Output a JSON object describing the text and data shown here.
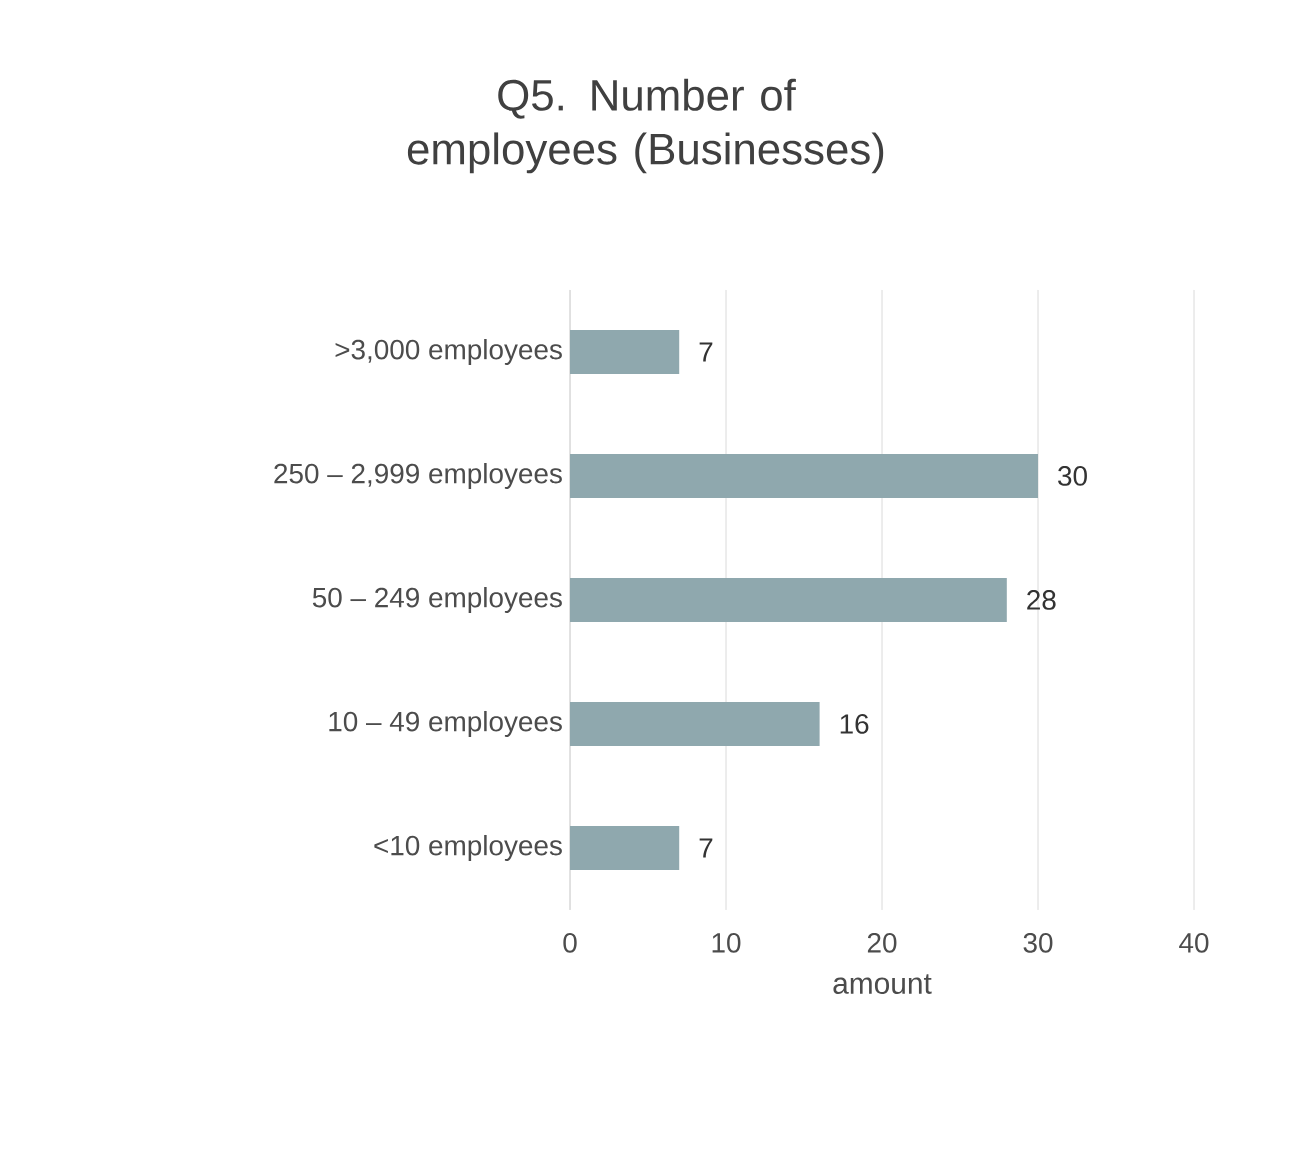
{
  "chart_data": {
    "type": "bar",
    "orientation": "horizontal",
    "title": "Q5. Number of employees (Businesses)",
    "xlabel": "amount",
    "categories": [
      ">3,000 employees",
      "250 – 2,999 employees",
      "50 – 249 employees",
      "10 – 49 employees",
      "<10 employees"
    ],
    "values": [
      7,
      30,
      28,
      16,
      7
    ],
    "color": "#8fa8ae",
    "xlim": [
      0,
      40
    ],
    "xticks": [
      0,
      10,
      20,
      30,
      40
    ],
    "grid": "x",
    "data_labels": true
  }
}
